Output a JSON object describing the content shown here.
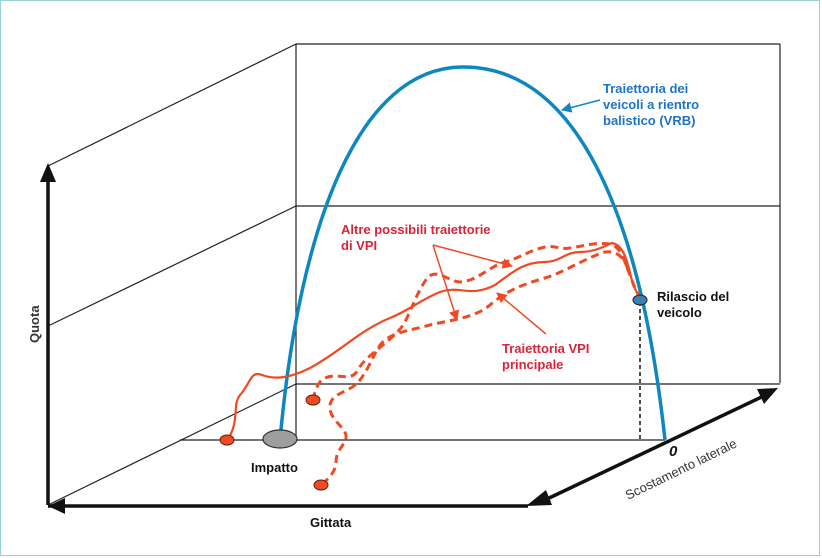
{
  "labels": {
    "vrb_line1": "Traiettoria dei",
    "vrb_line2": "veicoli a rientro",
    "vrb_line3": "balistico (VRB)",
    "altre_line1": "Altre possibili traiettorie",
    "altre_line2": "di VPI",
    "vpi_line1": "Traiettoria VPI",
    "vpi_line2": "principale",
    "rilascio_line1": "Rilascio del",
    "rilascio_line2": "veicolo",
    "impatto": "Impatto",
    "zero": "0",
    "quota": "Quota",
    "gittata": "Gittata",
    "scostamento": "Scostamento laterale"
  },
  "colors": {
    "vrb_curve": "#0e87c0",
    "vpi_curve": "#ef4a23",
    "vrb_text": "#1e73c8",
    "vpi_text": "#d8233a",
    "impact_marker": "#9e9e9e",
    "release_marker": "#3b7fb5"
  }
}
